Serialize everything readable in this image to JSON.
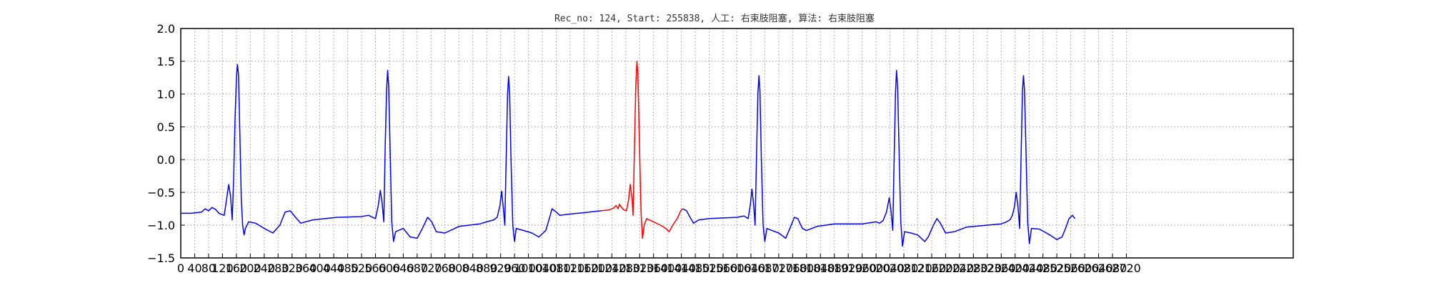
{
  "chart_data": {
    "type": "line",
    "title": "Rec_no: 124, Start: 255838, 人工: 右束肢阻塞, 算法: 右束肢阻塞",
    "xlabel": "",
    "ylabel": "",
    "xlim": [
      0,
      3200
    ],
    "ylim": [
      -1.5,
      2.0
    ],
    "yticks": [
      -1.5,
      -1.0,
      -0.5,
      0.0,
      0.5,
      1.0,
      1.5,
      2.0
    ],
    "ytick_labels": [
      "−1.5",
      "−1.0",
      "−0.5",
      "0.0",
      "0.5",
      "1.0",
      "1.5",
      "2.0"
    ],
    "xtick_step": 40,
    "xtick_last": 2720,
    "grid": true,
    "grid_style": "dotted",
    "colors": {
      "normal": "#0000ff",
      "highlight": "#ff0000",
      "grid": "#999999"
    },
    "series": [
      {
        "color": "blue",
        "points": [
          [
            0,
            -0.82
          ],
          [
            30,
            -0.82
          ],
          [
            60,
            -0.8
          ],
          [
            70,
            -0.75
          ],
          [
            80,
            -0.78
          ],
          [
            90,
            -0.73
          ],
          [
            100,
            -0.76
          ],
          [
            110,
            -0.82
          ],
          [
            125,
            -0.85
          ],
          [
            132,
            -0.6
          ],
          [
            138,
            -0.38
          ],
          [
            143,
            -0.55
          ],
          [
            148,
            -0.92
          ],
          [
            152,
            -0.3
          ],
          [
            156,
            0.6
          ],
          [
            160,
            1.25
          ],
          [
            163,
            1.45
          ],
          [
            166,
            1.3
          ],
          [
            170,
            0.4
          ],
          [
            174,
            -0.6
          ],
          [
            178,
            -1.0
          ],
          [
            182,
            -1.15
          ],
          [
            186,
            -1.05
          ],
          [
            195,
            -0.95
          ],
          [
            215,
            -0.97
          ],
          [
            240,
            -1.05
          ],
          [
            265,
            -1.12
          ],
          [
            285,
            -1.0
          ],
          [
            300,
            -0.8
          ],
          [
            315,
            -0.78
          ],
          [
            330,
            -0.88
          ],
          [
            345,
            -0.97
          ],
          [
            380,
            -0.92
          ],
          [
            450,
            -0.88
          ],
          [
            520,
            -0.87
          ],
          [
            540,
            -0.85
          ],
          [
            560,
            -0.9
          ],
          [
            568,
            -0.7
          ],
          [
            574,
            -0.47
          ],
          [
            579,
            -0.65
          ],
          [
            584,
            -0.95
          ],
          [
            588,
            0.2
          ],
          [
            592,
            1.05
          ],
          [
            595,
            1.36
          ],
          [
            598,
            1.1
          ],
          [
            602,
            0.2
          ],
          [
            607,
            -0.95
          ],
          [
            612,
            -1.25
          ],
          [
            618,
            -1.1
          ],
          [
            640,
            -1.05
          ],
          [
            660,
            -1.18
          ],
          [
            680,
            -1.2
          ],
          [
            695,
            -1.05
          ],
          [
            710,
            -0.88
          ],
          [
            722,
            -0.95
          ],
          [
            735,
            -1.1
          ],
          [
            760,
            -1.12
          ],
          [
            800,
            -1.02
          ],
          [
            860,
            -0.98
          ],
          [
            880,
            -0.95
          ],
          [
            900,
            -0.92
          ],
          [
            910,
            -0.88
          ],
          [
            918,
            -0.7
          ],
          [
            923,
            -0.48
          ],
          [
            928,
            -0.75
          ],
          [
            932,
            -1.0
          ],
          [
            936,
            0.0
          ],
          [
            940,
            1.0
          ],
          [
            943,
            1.27
          ],
          [
            946,
            1.0
          ],
          [
            950,
            0.0
          ],
          [
            955,
            -1.0
          ],
          [
            960,
            -1.25
          ],
          [
            965,
            -1.05
          ],
          [
            985,
            -1.08
          ],
          [
            1010,
            -1.12
          ],
          [
            1030,
            -1.18
          ],
          [
            1050,
            -1.08
          ],
          [
            1060,
            -0.9
          ],
          [
            1068,
            -0.75
          ],
          [
            1080,
            -0.8
          ],
          [
            1090,
            -0.85
          ],
          [
            1120,
            -0.83
          ],
          [
            1160,
            -0.81
          ],
          [
            1190,
            -0.79
          ],
          [
            1210,
            -0.78
          ]
        ]
      },
      {
        "color": "red",
        "points": [
          [
            1210,
            -0.78
          ],
          [
            1230,
            -0.77
          ],
          [
            1245,
            -0.74
          ],
          [
            1252,
            -0.7
          ],
          [
            1258,
            -0.75
          ],
          [
            1262,
            -0.68
          ],
          [
            1268,
            -0.73
          ],
          [
            1275,
            -0.77
          ],
          [
            1282,
            -0.78
          ],
          [
            1288,
            -0.62
          ],
          [
            1293,
            -0.38
          ],
          [
            1298,
            -0.6
          ],
          [
            1301,
            -0.85
          ],
          [
            1305,
            0.2
          ],
          [
            1309,
            1.15
          ],
          [
            1312,
            1.5
          ],
          [
            1315,
            1.3
          ],
          [
            1319,
            0.3
          ],
          [
            1324,
            -0.8
          ],
          [
            1328,
            -1.2
          ],
          [
            1333,
            -1.0
          ],
          [
            1340,
            -0.9
          ],
          [
            1360,
            -0.95
          ],
          [
            1380,
            -1.0
          ],
          [
            1395,
            -1.05
          ],
          [
            1405,
            -1.1
          ],
          [
            1415,
            -1.0
          ],
          [
            1428,
            -0.9
          ],
          [
            1438,
            -0.78
          ],
          [
            1444,
            -0.75
          ]
        ]
      },
      {
        "color": "blue",
        "points": [
          [
            1444,
            -0.75
          ],
          [
            1455,
            -0.78
          ],
          [
            1465,
            -0.88
          ],
          [
            1475,
            -0.97
          ],
          [
            1490,
            -0.92
          ],
          [
            1520,
            -0.9
          ],
          [
            1560,
            -0.89
          ],
          [
            1600,
            -0.88
          ],
          [
            1620,
            -0.86
          ],
          [
            1632,
            -0.9
          ],
          [
            1638,
            -0.7
          ],
          [
            1643,
            -0.45
          ],
          [
            1648,
            -0.7
          ],
          [
            1652,
            -1.0
          ],
          [
            1656,
            0.0
          ],
          [
            1660,
            1.0
          ],
          [
            1663,
            1.28
          ],
          [
            1666,
            1.05
          ],
          [
            1670,
            0.0
          ],
          [
            1675,
            -1.0
          ],
          [
            1680,
            -1.25
          ],
          [
            1686,
            -1.05
          ],
          [
            1700,
            -1.08
          ],
          [
            1720,
            -1.12
          ],
          [
            1740,
            -1.2
          ],
          [
            1752,
            -1.05
          ],
          [
            1765,
            -0.88
          ],
          [
            1775,
            -0.9
          ],
          [
            1788,
            -1.05
          ],
          [
            1800,
            -1.08
          ],
          [
            1830,
            -1.02
          ],
          [
            1880,
            -0.98
          ],
          [
            1960,
            -0.98
          ],
          [
            2000,
            -0.95
          ],
          [
            2010,
            -0.97
          ],
          [
            2020,
            -0.93
          ],
          [
            2030,
            -0.8
          ],
          [
            2038,
            -0.58
          ],
          [
            2043,
            -0.78
          ],
          [
            2048,
            -1.08
          ],
          [
            2052,
            0.0
          ],
          [
            2056,
            1.05
          ],
          [
            2059,
            1.36
          ],
          [
            2062,
            1.1
          ],
          [
            2066,
            0.2
          ],
          [
            2071,
            -0.95
          ],
          [
            2076,
            -1.32
          ],
          [
            2082,
            -1.1
          ],
          [
            2100,
            -1.12
          ],
          [
            2120,
            -1.15
          ],
          [
            2140,
            -1.25
          ],
          [
            2150,
            -1.18
          ],
          [
            2165,
            -1.0
          ],
          [
            2175,
            -0.9
          ],
          [
            2185,
            -0.97
          ],
          [
            2200,
            -1.12
          ],
          [
            2225,
            -1.1
          ],
          [
            2260,
            -1.03
          ],
          [
            2320,
            -1.0
          ],
          [
            2360,
            -0.98
          ],
          [
            2375,
            -0.95
          ],
          [
            2385,
            -0.92
          ],
          [
            2392,
            -0.85
          ],
          [
            2398,
            -0.72
          ],
          [
            2403,
            -0.5
          ],
          [
            2408,
            -0.7
          ],
          [
            2413,
            -1.05
          ],
          [
            2417,
            0.0
          ],
          [
            2421,
            1.05
          ],
          [
            2424,
            1.28
          ],
          [
            2427,
            1.05
          ],
          [
            2431,
            0.2
          ],
          [
            2436,
            -0.95
          ],
          [
            2441,
            -1.28
          ],
          [
            2447,
            -1.05
          ],
          [
            2470,
            -1.06
          ],
          [
            2500,
            -1.15
          ],
          [
            2520,
            -1.22
          ],
          [
            2535,
            -1.18
          ],
          [
            2545,
            -1.05
          ],
          [
            2555,
            -0.9
          ],
          [
            2565,
            -0.85
          ],
          [
            2572,
            -0.9
          ]
        ]
      }
    ]
  }
}
